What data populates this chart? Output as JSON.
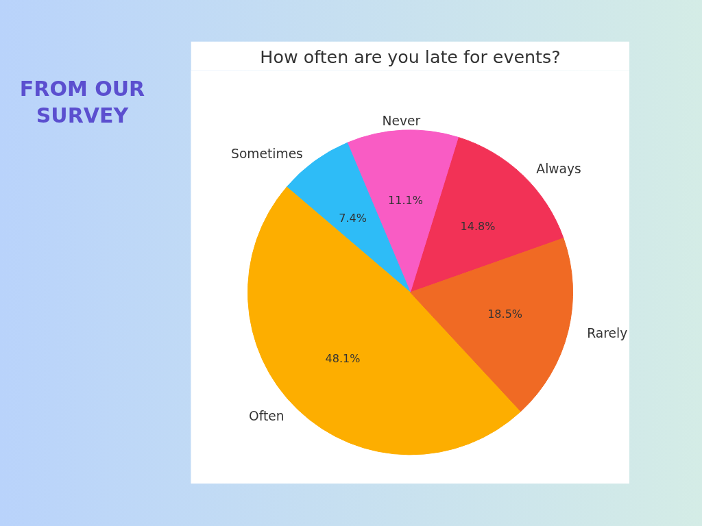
{
  "chart_data": {
    "type": "pie",
    "title": "How often are you late for events?",
    "subtitle": "FROM OUR SURVEY",
    "categories": [
      "Always",
      "Never",
      "Sometimes",
      "Often",
      "Rarely"
    ],
    "values": [
      14.8,
      11.1,
      7.4,
      48.1,
      18.5
    ],
    "value_labels": [
      "14.8%",
      "11.1%",
      "7.4%",
      "48.1%",
      "18.5%"
    ],
    "colors": [
      "#f23256",
      "#f95cc4",
      "#2ebcf7",
      "#fdae00",
      "#f06a24"
    ]
  }
}
